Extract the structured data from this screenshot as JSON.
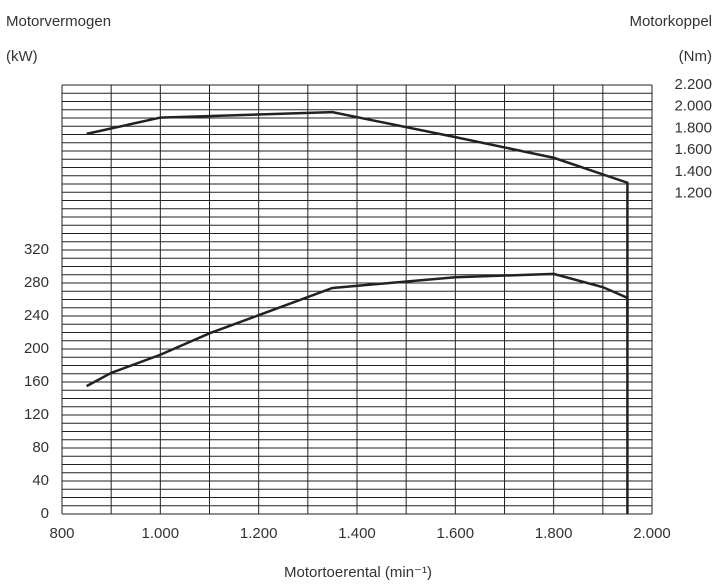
{
  "chart_data": {
    "type": "line",
    "y_label_top": "Motorvermogen",
    "y_label_unit": "(kW)",
    "y2_label_top": "Motorkoppel",
    "y2_label_unit": "(Nm)",
    "x_label": "Motortoerental (min⁻¹)",
    "xlim": [
      800,
      2000
    ],
    "xticks": [
      800,
      {
        "value": 1000,
        "label": "1.000"
      },
      {
        "value": 1200,
        "label": "1.200"
      },
      {
        "value": 1400,
        "label": "1.400"
      },
      {
        "value": 1600,
        "label": "1.600"
      },
      {
        "value": 1800,
        "label": "1.800"
      },
      {
        "value": 2000,
        "label": "2.000"
      }
    ],
    "ylim": [
      0,
      520
    ],
    "yticks": [
      0,
      40,
      80,
      120,
      160,
      200,
      240,
      280,
      320
    ],
    "y2lim": [
      -1750,
      2200
    ],
    "y2ticks": [
      {
        "value": 1200,
        "label": "1.200"
      },
      {
        "value": 1400,
        "label": "1.400"
      },
      {
        "value": 1600,
        "label": "1.600"
      },
      {
        "value": 1800,
        "label": "1.800"
      },
      {
        "value": 2000,
        "label": "2.000"
      },
      {
        "value": 2200,
        "label": "2.200"
      }
    ],
    "grid": true,
    "x_grid": [
      800,
      900,
      1000,
      1100,
      1200,
      1300,
      1400,
      1500,
      1600,
      1700,
      1800,
      1900,
      2000
    ],
    "y_grid": [
      0,
      10,
      20,
      30,
      40,
      50,
      60,
      70,
      80,
      90,
      100,
      110,
      120,
      130,
      140,
      150,
      160,
      170,
      180,
      190,
      200,
      210,
      220,
      230,
      240,
      250,
      260,
      270,
      280,
      290,
      300,
      310,
      320,
      330,
      340,
      350,
      360,
      370,
      380,
      390,
      400,
      410,
      420,
      430,
      440,
      450,
      460,
      470,
      480,
      490,
      500,
      510,
      520
    ],
    "series": [
      {
        "color": "#222222",
        "x": [
          850,
          900,
          1000,
          1100,
          1200,
          1350,
          1600,
          1800,
          1900,
          1950,
          1950
        ],
        "values": [
          155,
          171,
          193,
          219,
          241,
          274,
          287,
          291,
          275,
          262,
          0
        ]
      },
      {
        "color": "#222222",
        "axis": "y2",
        "x": [
          850,
          1000,
          1350,
          1600,
          1800,
          1950,
          1950
        ],
        "values": [
          1750,
          1900,
          1950,
          1720,
          1530,
          1300,
          0
        ]
      }
    ]
  }
}
